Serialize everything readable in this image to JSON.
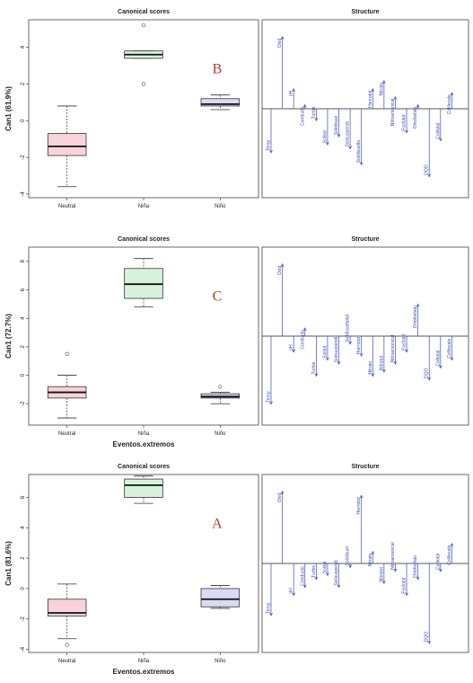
{
  "chart_data": [
    {
      "type": "box",
      "title": "Canonical scores",
      "ylabel": "Can1 (61.9%)",
      "xlabel": "",
      "ylim": [
        -4.2,
        5.5
      ],
      "yticks": [
        -4,
        -2,
        0,
        2,
        4
      ],
      "categories": [
        "Neutral",
        "Niña",
        "Niño"
      ],
      "colors": [
        "#f8d3dc",
        "#d8f2dc",
        "#dcd9f5"
      ],
      "boxes": [
        {
          "min": -3.6,
          "q1": -1.9,
          "median": -1.4,
          "q3": -0.7,
          "max": 0.8,
          "outliers": []
        },
        {
          "min": 3.4,
          "q1": 3.4,
          "median": 3.6,
          "q3": 3.8,
          "max": 3.8,
          "outliers": [
            5.2,
            2.0
          ]
        },
        {
          "min": 0.6,
          "q1": 0.8,
          "median": 0.9,
          "q3": 1.2,
          "max": 1.4,
          "outliers": []
        }
      ],
      "panel_label": "B",
      "structure": {
        "title": "Structure",
        "variables": [
          {
            "name": "Temp",
            "value": -0.55
          },
          {
            "name": "Oxid",
            "value": 0.9
          },
          {
            "name": "pH",
            "value": 0.25
          },
          {
            "name": "Conducto",
            "value": 0.05
          },
          {
            "name": "Turbie",
            "value": -0.15
          },
          {
            "name": "Solitot",
            "value": -0.45
          },
          {
            "name": "Solidisuel",
            "value": -0.35
          },
          {
            "name": "Solisuspendi",
            "value": -0.5
          },
          {
            "name": "Solidisuelto",
            "value": -0.7
          },
          {
            "name": "Hierrotot",
            "value": 0.25
          },
          {
            "name": "Nitrato",
            "value": 0.35
          },
          {
            "name": "Nitroamonical",
            "value": 0.15
          },
          {
            "name": "Fosfotot",
            "value": -0.3
          },
          {
            "name": "Ortofosfato",
            "value": 0.05
          },
          {
            "name": "DQO",
            "value": -0.85
          },
          {
            "name": "Colitotal",
            "value": -0.4
          },
          {
            "name": "Colifecale",
            "value": 0.2
          }
        ]
      }
    },
    {
      "type": "box",
      "title": "Canonical scores",
      "ylabel": "Can1 (72.7%)",
      "xlabel": "Eventos.extremos",
      "ylim": [
        -3.5,
        9.0
      ],
      "yticks": [
        -2,
        0,
        2,
        4,
        6,
        8
      ],
      "categories": [
        "Neutral",
        "Niña",
        "Niño"
      ],
      "colors": [
        "#f8d3dc",
        "#d8f2dc",
        "#dcd9f5"
      ],
      "boxes": [
        {
          "min": -3.0,
          "q1": -1.6,
          "median": -1.2,
          "q3": -0.8,
          "max": 0.0,
          "outliers": [
            1.5
          ]
        },
        {
          "min": 4.8,
          "q1": 5.4,
          "median": 6.4,
          "q3": 7.5,
          "max": 8.2,
          "outliers": []
        },
        {
          "min": -2.0,
          "q1": -1.6,
          "median": -1.5,
          "q3": -1.3,
          "max": -1.2,
          "outliers": [
            -0.8
          ]
        }
      ],
      "panel_label": "C",
      "structure": {
        "title": "Structure",
        "variables": [
          {
            "name": "Temp",
            "value": -0.85
          },
          {
            "name": "Oxid",
            "value": 0.9
          },
          {
            "name": "pH",
            "value": -0.2
          },
          {
            "name": "Conducto",
            "value": 0.1
          },
          {
            "name": "Turbie",
            "value": -0.5
          },
          {
            "name": "Solitot",
            "value": -0.3
          },
          {
            "name": "Solisuspendi",
            "value": -0.35
          },
          {
            "name": "Solidisueltotal",
            "value": -0.1
          },
          {
            "name": "Hierrotot",
            "value": -0.25
          },
          {
            "name": "Nitrato",
            "value": -0.5
          },
          {
            "name": "Nitrotot",
            "value": -0.45
          },
          {
            "name": "Nitroamonical",
            "value": -0.35
          },
          {
            "name": "Fosfotot",
            "value": -0.2
          },
          {
            "name": "Ortofosfato",
            "value": 0.4
          },
          {
            "name": "DQO",
            "value": -0.55
          },
          {
            "name": "Colitotal",
            "value": -0.4
          },
          {
            "name": "Colifecale",
            "value": -0.3
          }
        ]
      }
    },
    {
      "type": "box",
      "title": "Canonical scores",
      "ylabel": "Can1 (81.6%)",
      "xlabel": "Eventos.extremos",
      "ylim": [
        -4.2,
        7.5
      ],
      "yticks": [
        -4,
        -2,
        0,
        2,
        4,
        6
      ],
      "categories": [
        "Neutral",
        "Niña",
        "Niño"
      ],
      "colors": [
        "#f8d3dc",
        "#d8f2dc",
        "#dcd9f5"
      ],
      "boxes": [
        {
          "min": -3.3,
          "q1": -1.8,
          "median": -1.6,
          "q3": -0.7,
          "max": 0.3,
          "outliers": [
            -3.7
          ]
        },
        {
          "min": 5.6,
          "q1": 6.0,
          "median": 6.8,
          "q3": 7.2,
          "max": 7.4,
          "outliers": []
        },
        {
          "min": -1.3,
          "q1": -1.2,
          "median": -0.7,
          "q3": 0.0,
          "max": 0.2,
          "outliers": []
        }
      ],
      "panel_label": "A",
      "structure": {
        "title": "Structure",
        "variables": [
          {
            "name": "Temp",
            "value": -0.65
          },
          {
            "name": "Oxid",
            "value": 0.9
          },
          {
            "name": "pH",
            "value": -0.4
          },
          {
            "name": "Conducto",
            "value": -0.3
          },
          {
            "name": "Turbie",
            "value": -0.2
          },
          {
            "name": "Solitot",
            "value": -0.15
          },
          {
            "name": "Solisuspendi",
            "value": -0.3
          },
          {
            "name": "Solidisuel",
            "value": -0.05
          },
          {
            "name": "Hierrotot",
            "value": 0.85
          },
          {
            "name": "Nitrato",
            "value": 0.15
          },
          {
            "name": "Nitrotot",
            "value": -0.25
          },
          {
            "name": "Nitroamonical",
            "value": -0.1
          },
          {
            "name": "Fosfotot",
            "value": -0.4
          },
          {
            "name": "Ortofosfato",
            "value": -0.2
          },
          {
            "name": "DQO",
            "value": -1.0
          },
          {
            "name": "Colitotal",
            "value": -0.1
          },
          {
            "name": "Colifecale",
            "value": 0.25
          }
        ]
      }
    }
  ]
}
